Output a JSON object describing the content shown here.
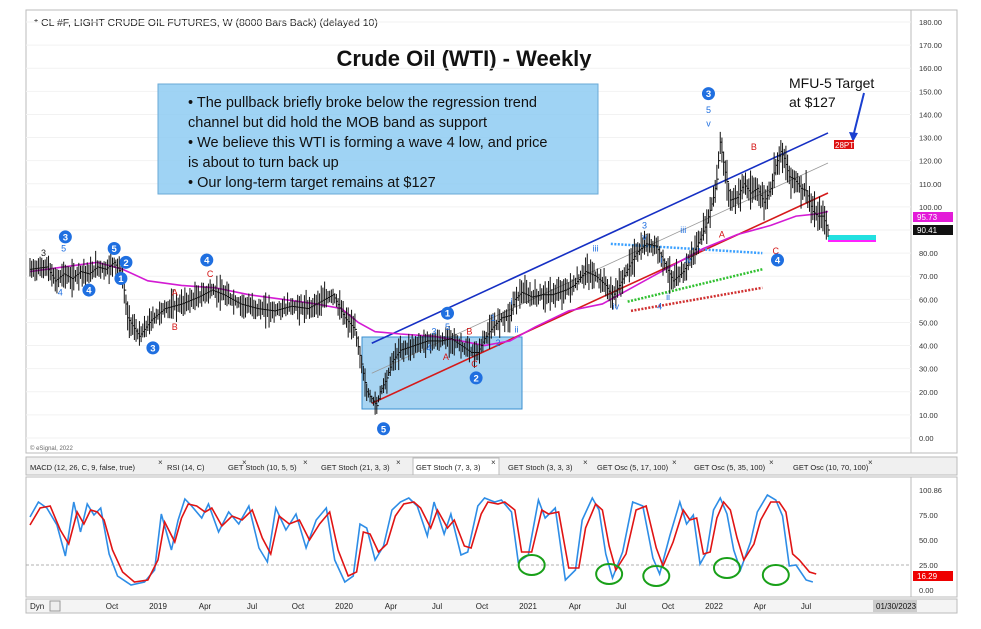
{
  "header": {
    "symbol_line": "* CL #F, LIGHT CRUDE OIL FUTURES, W (8000 Bars Back) (delayed 10)",
    "title": "Crude Oil (WTI) - Weekly",
    "watermark": "© eSignal, 2022"
  },
  "notes": {
    "bullets": [
      "• The pullback briefly broke below the regression trend",
      "   channel but did hold the MOB band as support",
      "• We believe this WTI is forming a wave 4 low, and price",
      "   is about to turn back up",
      "• Our long-term target remains at $127"
    ]
  },
  "target_annotation": {
    "line1": "MFU-5 Target",
    "line2": "at $127",
    "marker": "28PTI"
  },
  "price_axis": {
    "ticks": [
      "180.00",
      "170.00",
      "160.00",
      "150.00",
      "140.00",
      "130.00",
      "120.00",
      "110.00",
      "100.00",
      "90.00",
      "80.00",
      "70.00",
      "60.00",
      "50.00",
      "40.00",
      "30.00",
      "20.00",
      "10.00",
      "0.00"
    ],
    "badge_upper": "95.73",
    "badge_last": "90.41"
  },
  "indicator_tabs": [
    "MACD (12, 26, C, 9, false, true)",
    "RSI (14, C)",
    "GET Stoch (10, 5, 5)",
    "GET Stoch (21, 3, 3)",
    "GET Stoch (7, 3, 3)",
    "GET Stoch (3, 3, 3)",
    "GET Osc (5, 17, 100)",
    "GET Osc (5, 35, 100)",
    "GET Osc (10, 70, 100)"
  ],
  "stoch_axis": {
    "ticks": [
      "100.86",
      "75.00",
      "50.00",
      "25.00",
      "0.00"
    ],
    "badge_last": "16.29"
  },
  "time_axis": {
    "dyn_label": "Dyn",
    "labels": [
      "Oct",
      "2019",
      "Apr",
      "Jul",
      "Oct",
      "2020",
      "Apr",
      "Jul",
      "Oct",
      "2021",
      "Apr",
      "Jul",
      "Oct",
      "2022",
      "Apr",
      "Jul"
    ],
    "date_badge": "01/30/2023"
  },
  "chart_data": {
    "type": "line",
    "title": "Crude Oil (WTI) - Weekly",
    "ylim": [
      0,
      180
    ],
    "price_path": [
      [
        0,
        73
      ],
      [
        10,
        74
      ],
      [
        15,
        68
      ],
      [
        20,
        71
      ],
      [
        25,
        69
      ],
      [
        30,
        72
      ],
      [
        35,
        71
      ],
      [
        40,
        74
      ],
      [
        45,
        73
      ],
      [
        50,
        76
      ],
      [
        55,
        70
      ],
      [
        58,
        52
      ],
      [
        65,
        44
      ],
      [
        72,
        51
      ],
      [
        80,
        56
      ],
      [
        90,
        58
      ],
      [
        100,
        61
      ],
      [
        108,
        64
      ],
      [
        115,
        62
      ],
      [
        125,
        58
      ],
      [
        135,
        56
      ],
      [
        145,
        55
      ],
      [
        155,
        57
      ],
      [
        165,
        56
      ],
      [
        175,
        60
      ],
      [
        180,
        62
      ],
      [
        187,
        52
      ],
      [
        193,
        47
      ],
      [
        197,
        32
      ],
      [
        200,
        20
      ],
      [
        203,
        17
      ],
      [
        206,
        14
      ],
      [
        208,
        20
      ],
      [
        212,
        26
      ],
      [
        215,
        33
      ],
      [
        220,
        38
      ],
      [
        228,
        40
      ],
      [
        236,
        42
      ],
      [
        244,
        42
      ],
      [
        250,
        43
      ],
      [
        256,
        40
      ],
      [
        262,
        37
      ],
      [
        266,
        37
      ],
      [
        270,
        43
      ],
      [
        275,
        48
      ],
      [
        280,
        52
      ],
      [
        285,
        53
      ],
      [
        288,
        60
      ],
      [
        292,
        63
      ],
      [
        298,
        61
      ],
      [
        304,
        62
      ],
      [
        310,
        62
      ],
      [
        318,
        64
      ],
      [
        323,
        66
      ],
      [
        330,
        72
      ],
      [
        336,
        70
      ],
      [
        342,
        66
      ],
      [
        346,
        61
      ],
      [
        350,
        66
      ],
      [
        355,
        73
      ],
      [
        360,
        80
      ],
      [
        366,
        84
      ],
      [
        372,
        83
      ],
      [
        378,
        74
      ],
      [
        382,
        68
      ],
      [
        388,
        72
      ],
      [
        394,
        80
      ],
      [
        398,
        86
      ],
      [
        402,
        93
      ],
      [
        406,
        104
      ],
      [
        408,
        112
      ],
      [
        410,
        128
      ],
      [
        413,
        115
      ],
      [
        416,
        103
      ],
      [
        420,
        104
      ],
      [
        424,
        110
      ],
      [
        428,
        106
      ],
      [
        432,
        108
      ],
      [
        436,
        102
      ],
      [
        440,
        108
      ],
      [
        443,
        118
      ],
      [
        446,
        124
      ],
      [
        448,
        121
      ],
      [
        451,
        113
      ],
      [
        454,
        112
      ],
      [
        458,
        108
      ],
      [
        461,
        107
      ],
      [
        465,
        98
      ],
      [
        468,
        96
      ],
      [
        471,
        96
      ],
      [
        474,
        90
      ]
    ],
    "stoch_fast": [
      [
        0,
        73
      ],
      [
        5,
        88
      ],
      [
        10,
        82
      ],
      [
        16,
        65
      ],
      [
        21,
        34
      ],
      [
        26,
        88
      ],
      [
        30,
        58
      ],
      [
        34,
        86
      ],
      [
        38,
        75
      ],
      [
        42,
        82
      ],
      [
        47,
        36
      ],
      [
        52,
        14
      ],
      [
        60,
        5
      ],
      [
        68,
        8
      ],
      [
        74,
        20
      ],
      [
        78,
        76
      ],
      [
        84,
        40
      ],
      [
        88,
        70
      ],
      [
        92,
        91
      ],
      [
        96,
        84
      ],
      [
        102,
        72
      ],
      [
        106,
        86
      ],
      [
        112,
        58
      ],
      [
        118,
        78
      ],
      [
        124,
        66
      ],
      [
        130,
        84
      ],
      [
        136,
        42
      ],
      [
        141,
        28
      ],
      [
        146,
        82
      ],
      [
        152,
        60
      ],
      [
        158,
        76
      ],
      [
        164,
        42
      ],
      [
        170,
        70
      ],
      [
        176,
        82
      ],
      [
        181,
        30
      ],
      [
        187,
        8
      ],
      [
        192,
        14
      ],
      [
        196,
        66
      ],
      [
        200,
        62
      ],
      [
        205,
        30
      ],
      [
        210,
        44
      ],
      [
        215,
        80
      ],
      [
        220,
        88
      ],
      [
        225,
        92
      ],
      [
        230,
        84
      ],
      [
        236,
        54
      ],
      [
        240,
        88
      ],
      [
        246,
        56
      ],
      [
        250,
        76
      ],
      [
        256,
        35
      ],
      [
        260,
        38
      ],
      [
        266,
        84
      ],
      [
        270,
        92
      ],
      [
        276,
        88
      ],
      [
        280,
        90
      ],
      [
        286,
        78
      ],
      [
        290,
        28
      ],
      [
        296,
        35
      ],
      [
        302,
        90
      ],
      [
        306,
        72
      ],
      [
        312,
        82
      ],
      [
        318,
        10
      ],
      [
        324,
        20
      ],
      [
        328,
        70
      ],
      [
        334,
        92
      ],
      [
        338,
        80
      ],
      [
        342,
        36
      ],
      [
        346,
        12
      ],
      [
        352,
        38
      ],
      [
        358,
        88
      ],
      [
        364,
        84
      ],
      [
        370,
        32
      ],
      [
        374,
        16
      ],
      [
        380,
        54
      ],
      [
        386,
        88
      ],
      [
        390,
        66
      ],
      [
        394,
        75
      ],
      [
        398,
        26
      ],
      [
        402,
        38
      ],
      [
        406,
        80
      ],
      [
        410,
        92
      ],
      [
        414,
        76
      ],
      [
        418,
        40
      ],
      [
        422,
        20
      ],
      [
        428,
        48
      ],
      [
        432,
        78
      ],
      [
        438,
        95
      ],
      [
        443,
        90
      ],
      [
        447,
        74
      ],
      [
        451,
        24
      ],
      [
        455,
        25
      ],
      [
        461,
        10
      ],
      [
        465,
        8
      ]
    ],
    "stoch_slow": [
      [
        0,
        65
      ],
      [
        6,
        82
      ],
      [
        12,
        84
      ],
      [
        18,
        60
      ],
      [
        23,
        46
      ],
      [
        28,
        78
      ],
      [
        32,
        66
      ],
      [
        36,
        80
      ],
      [
        40,
        78
      ],
      [
        44,
        70
      ],
      [
        49,
        40
      ],
      [
        55,
        18
      ],
      [
        62,
        8
      ],
      [
        70,
        10
      ],
      [
        76,
        30
      ],
      [
        80,
        68
      ],
      [
        86,
        48
      ],
      [
        90,
        72
      ],
      [
        94,
        86
      ],
      [
        99,
        84
      ],
      [
        104,
        78
      ],
      [
        108,
        82
      ],
      [
        114,
        64
      ],
      [
        120,
        74
      ],
      [
        126,
        70
      ],
      [
        132,
        80
      ],
      [
        138,
        52
      ],
      [
        143,
        36
      ],
      [
        148,
        74
      ],
      [
        154,
        66
      ],
      [
        160,
        70
      ],
      [
        166,
        50
      ],
      [
        172,
        66
      ],
      [
        178,
        78
      ],
      [
        183,
        40
      ],
      [
        189,
        14
      ],
      [
        194,
        18
      ],
      [
        198,
        58
      ],
      [
        202,
        56
      ],
      [
        207,
        38
      ],
      [
        212,
        46
      ],
      [
        217,
        74
      ],
      [
        222,
        86
      ],
      [
        228,
        88
      ],
      [
        232,
        82
      ],
      [
        238,
        62
      ],
      [
        242,
        80
      ],
      [
        248,
        62
      ],
      [
        252,
        70
      ],
      [
        258,
        44
      ],
      [
        262,
        42
      ],
      [
        268,
        76
      ],
      [
        272,
        88
      ],
      [
        278,
        86
      ],
      [
        282,
        88
      ],
      [
        288,
        80
      ],
      [
        292,
        38
      ],
      [
        298,
        38
      ],
      [
        304,
        80
      ],
      [
        308,
        76
      ],
      [
        314,
        78
      ],
      [
        320,
        22
      ],
      [
        326,
        22
      ],
      [
        330,
        62
      ],
      [
        336,
        86
      ],
      [
        340,
        80
      ],
      [
        344,
        44
      ],
      [
        348,
        20
      ],
      [
        354,
        36
      ],
      [
        360,
        80
      ],
      [
        366,
        84
      ],
      [
        372,
        42
      ],
      [
        376,
        24
      ],
      [
        382,
        48
      ],
      [
        388,
        80
      ],
      [
        392,
        70
      ],
      [
        396,
        72
      ],
      [
        400,
        36
      ],
      [
        404,
        38
      ],
      [
        408,
        72
      ],
      [
        412,
        88
      ],
      [
        416,
        80
      ],
      [
        420,
        52
      ],
      [
        424,
        30
      ],
      [
        430,
        46
      ],
      [
        434,
        70
      ],
      [
        440,
        88
      ],
      [
        445,
        88
      ],
      [
        449,
        78
      ],
      [
        453,
        36
      ],
      [
        457,
        30
      ],
      [
        463,
        18
      ],
      [
        467,
        16
      ]
    ],
    "ma_path": [
      [
        0,
        72
      ],
      [
        20,
        74
      ],
      [
        40,
        76
      ],
      [
        55,
        73
      ],
      [
        70,
        68
      ],
      [
        90,
        66
      ],
      [
        110,
        65
      ],
      [
        130,
        62
      ],
      [
        150,
        60
      ],
      [
        170,
        58
      ],
      [
        185,
        56
      ],
      [
        195,
        50
      ],
      [
        205,
        46
      ],
      [
        220,
        45
      ],
      [
        240,
        44
      ],
      [
        256,
        42
      ],
      [
        270,
        40
      ],
      [
        285,
        42
      ],
      [
        300,
        48
      ],
      [
        320,
        55
      ],
      [
        340,
        58
      ],
      [
        360,
        66
      ],
      [
        380,
        74
      ],
      [
        400,
        82
      ],
      [
        420,
        88
      ],
      [
        440,
        92
      ],
      [
        455,
        96
      ],
      [
        468,
        97
      ],
      [
        474,
        98
      ]
    ],
    "channel": {
      "upper": [
        [
          203,
          41
        ],
        [
          474,
          132
        ]
      ],
      "mid": [
        [
          203,
          28
        ],
        [
          474,
          119
        ]
      ],
      "lower": [
        [
          203,
          15
        ],
        [
          474,
          106
        ]
      ]
    },
    "band_rows": [
      {
        "name": "cyan",
        "from": [
          345,
          84
        ],
        "to": [
          435,
          80
        ]
      },
      {
        "name": "green",
        "from": [
          355,
          59
        ],
        "to": [
          435,
          73
        ]
      },
      {
        "name": "red",
        "from": [
          357,
          55
        ],
        "to": [
          435,
          65
        ]
      }
    ],
    "wave_labels": [
      {
        "t": "3",
        "x": 8,
        "v": 80,
        "style": "text-dark"
      },
      {
        "t": "5",
        "x": 20,
        "v": 82,
        "style": "text-blue"
      },
      {
        "t": "4",
        "x": 18,
        "v": 63,
        "style": "text-blue"
      },
      {
        "t": "3",
        "x": 21,
        "v": 87,
        "style": "circle"
      },
      {
        "t": "4",
        "x": 35,
        "v": 64,
        "style": "circle"
      },
      {
        "t": "5",
        "x": 50,
        "v": 82,
        "style": "circle"
      },
      {
        "t": "2",
        "x": 57,
        "v": 76,
        "style": "circle"
      },
      {
        "t": "1",
        "x": 54,
        "v": 69,
        "style": "circle"
      },
      {
        "t": "3",
        "x": 73,
        "v": 39,
        "style": "circle"
      },
      {
        "t": "4",
        "x": 105,
        "v": 77,
        "style": "circle"
      },
      {
        "t": "A",
        "x": 86,
        "v": 63,
        "style": "text-red"
      },
      {
        "t": "B",
        "x": 86,
        "v": 48,
        "style": "text-red"
      },
      {
        "t": "C",
        "x": 107,
        "v": 71,
        "style": "text-red"
      },
      {
        "t": "5",
        "x": 210,
        "v": 4,
        "style": "circle"
      },
      {
        "t": "1",
        "x": 248,
        "v": 54,
        "style": "circle"
      },
      {
        "t": "5",
        "x": 248,
        "v": 48,
        "style": "text-blue"
      },
      {
        "t": "3",
        "x": 240,
        "v": 46,
        "style": "text-blue"
      },
      {
        "t": "4",
        "x": 237,
        "v": 39,
        "style": "text-blue"
      },
      {
        "t": "A",
        "x": 247,
        "v": 35,
        "style": "text-red"
      },
      {
        "t": "B",
        "x": 261,
        "v": 46,
        "style": "text-red"
      },
      {
        "t": "C",
        "x": 264,
        "v": 32,
        "style": "text-red"
      },
      {
        "t": "2",
        "x": 265,
        "v": 26,
        "style": "circle"
      },
      {
        "t": "1",
        "x": 275,
        "v": 52,
        "style": "text-blue"
      },
      {
        "t": "2",
        "x": 278,
        "v": 41,
        "style": "text-blue"
      },
      {
        "t": "i",
        "x": 286,
        "v": 59,
        "style": "text-blue"
      },
      {
        "t": "ii",
        "x": 289,
        "v": 47,
        "style": "text-blue"
      },
      {
        "t": "iii",
        "x": 336,
        "v": 82,
        "style": "text-blue"
      },
      {
        "t": "iv",
        "x": 348,
        "v": 57,
        "style": "text-blue"
      },
      {
        "t": "3",
        "x": 365,
        "v": 92,
        "style": "text-blue"
      },
      {
        "t": "v",
        "x": 365,
        "v": 87,
        "style": "text-blue"
      },
      {
        "t": "4",
        "x": 374,
        "v": 57,
        "style": "text-blue"
      },
      {
        "t": "iii",
        "x": 388,
        "v": 90,
        "style": "text-blue"
      },
      {
        "t": "i",
        "x": 375,
        "v": 77,
        "style": "text-blue"
      },
      {
        "t": "ii",
        "x": 379,
        "v": 61,
        "style": "text-blue"
      },
      {
        "t": "iv",
        "x": 391,
        "v": 77,
        "style": "text-blue"
      },
      {
        "t": "3",
        "x": 403,
        "v": 149,
        "style": "circle"
      },
      {
        "t": "5",
        "x": 403,
        "v": 142,
        "style": "text-blue"
      },
      {
        "t": "v",
        "x": 403,
        "v": 136,
        "style": "text-blue"
      },
      {
        "t": "A",
        "x": 411,
        "v": 88,
        "style": "text-red"
      },
      {
        "t": "B",
        "x": 430,
        "v": 126,
        "style": "text-red"
      },
      {
        "t": "C",
        "x": 443,
        "v": 81,
        "style": "text-red"
      },
      {
        "t": "4",
        "x": 444,
        "v": 77,
        "style": "circle"
      }
    ],
    "stoch_circles": [
      [
        298,
        25
      ],
      [
        344,
        16
      ],
      [
        372,
        14
      ],
      [
        414,
        22
      ],
      [
        443,
        15
      ]
    ]
  }
}
